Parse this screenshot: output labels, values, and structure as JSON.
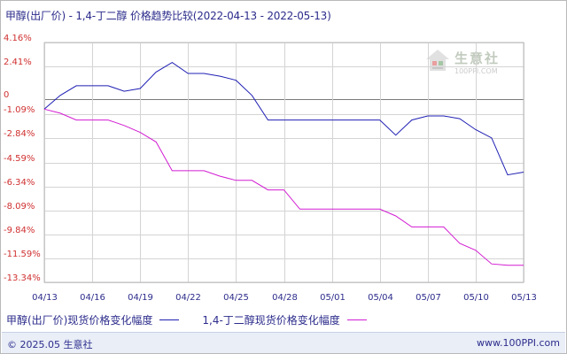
{
  "header": {
    "title": "甲醇(出厂价) - 1,4-丁二醇 价格趋势比较(2022-04-13 - 2022-05-13)"
  },
  "watermark": {
    "name": "生意社",
    "url": "100PPI.COM"
  },
  "footer": {
    "copyright": "© 2025.05 生意社",
    "site": "www.100PPI.com"
  },
  "colors": {
    "series1": "#1f1fb4",
    "series2": "#d21cd2",
    "text": "#2c2c8c",
    "zero_line": "#7a7a7a",
    "grid": "#d4d4d4"
  },
  "chart_data": {
    "type": "line",
    "title": "甲醇(出厂价) - 1,4-丁二醇 价格趋势比较(2022-04-13 - 2022-05-13)",
    "x": [
      "04/13",
      "04/14",
      "04/15",
      "04/16",
      "04/17",
      "04/18",
      "04/19",
      "04/20",
      "04/21",
      "04/22",
      "04/23",
      "04/24",
      "04/25",
      "04/26",
      "04/27",
      "04/28",
      "04/29",
      "04/30",
      "05/01",
      "05/02",
      "05/03",
      "05/04",
      "05/05",
      "05/06",
      "05/07",
      "05/08",
      "05/09",
      "05/10",
      "05/11",
      "05/12",
      "05/13"
    ],
    "x_tick_labels": [
      "04/13",
      "04/16",
      "04/19",
      "04/22",
      "04/25",
      "04/28",
      "05/01",
      "05/04",
      "05/07",
      "05/10",
      "05/13"
    ],
    "y_tick_labels": [
      "4.16%",
      "2.41%",
      "0",
      "-1.09%",
      "-2.84%",
      "-4.59%",
      "-6.34%",
      "-8.09%",
      "-9.84%",
      "-11.59%",
      "-13.34%"
    ],
    "y_ticks": [
      4.16,
      2.41,
      0,
      -1.09,
      -2.84,
      -4.59,
      -6.34,
      -8.09,
      -9.84,
      -11.59,
      -13.34
    ],
    "ylim": [
      -13.34,
      4.16
    ],
    "xlabel": "",
    "ylabel": "",
    "grid": true,
    "legend": "bottom",
    "series": [
      {
        "name": "甲醇(出厂价)现货价格变化幅度",
        "values": [
          -0.7,
          0.3,
          1.0,
          1.0,
          1.0,
          0.6,
          0.8,
          2.0,
          2.7,
          1.9,
          1.9,
          1.7,
          1.4,
          0.3,
          -1.5,
          -1.5,
          -1.5,
          -1.5,
          -1.5,
          -1.5,
          -1.5,
          -1.5,
          -2.6,
          -1.5,
          -1.2,
          -1.2,
          -1.4,
          -2.2,
          -2.8,
          -5.5,
          -5.3
        ]
      },
      {
        "name": "1,4-丁二醇现货价格变化幅度",
        "values": [
          -0.7,
          -1.0,
          -1.5,
          -1.5,
          -1.5,
          -1.9,
          -2.4,
          -3.1,
          -5.2,
          -5.2,
          -5.2,
          -5.6,
          -5.9,
          -5.9,
          -6.6,
          -6.6,
          -8.0,
          -8.0,
          -8.0,
          -8.0,
          -8.0,
          -8.0,
          -8.5,
          -9.3,
          -9.3,
          -9.3,
          -10.5,
          -11.0,
          -12.0,
          -12.1,
          -12.1
        ]
      }
    ]
  }
}
